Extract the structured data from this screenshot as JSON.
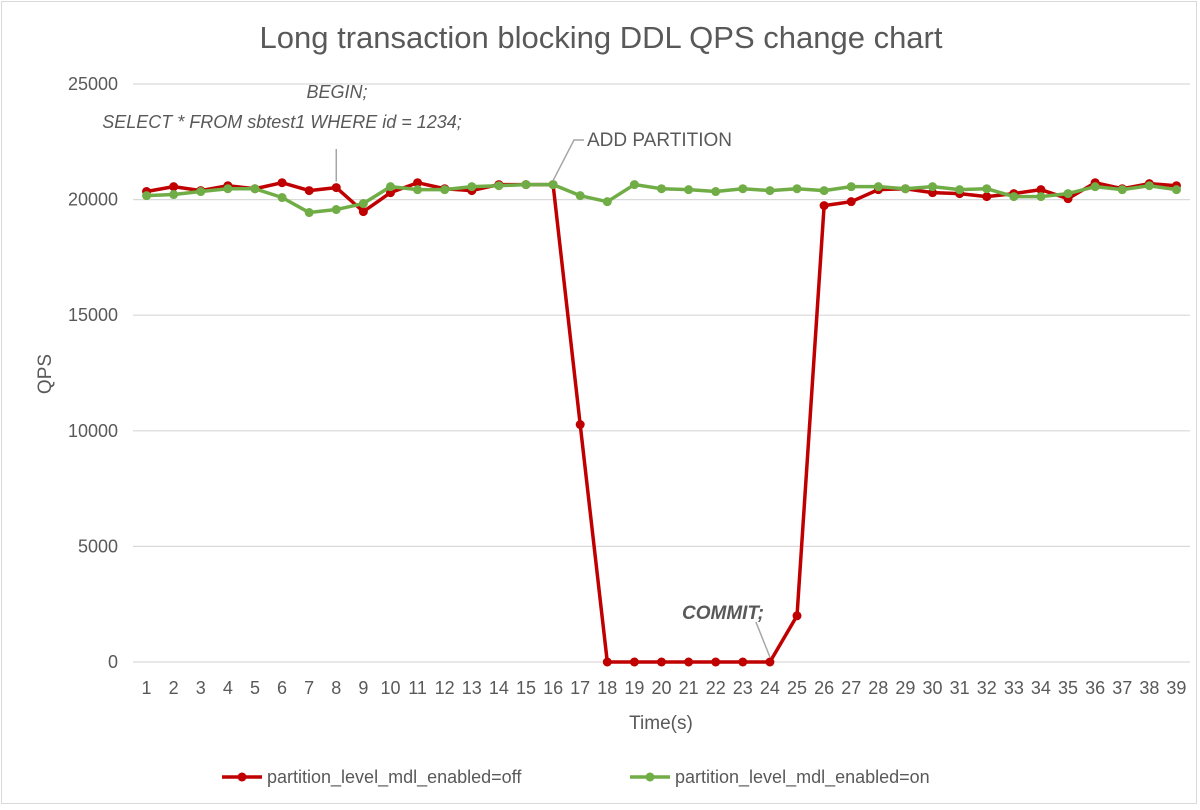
{
  "chart_data": {
    "type": "line",
    "title": "Long transaction blocking DDL QPS change chart",
    "xlabel": "Time(s)",
    "ylabel": "QPS",
    "ylim": [
      0,
      25000
    ],
    "yticks": [
      "0",
      "5000",
      "10000",
      "15000",
      "20000",
      "25000"
    ],
    "grid": "horizontal",
    "legend_position": "bottom",
    "categories": [
      "1",
      "2",
      "3",
      "4",
      "5",
      "6",
      "7",
      "8",
      "9",
      "10",
      "11",
      "12",
      "13",
      "14",
      "15",
      "16",
      "17",
      "18",
      "19",
      "20",
      "21",
      "22",
      "23",
      "24",
      "25",
      "26",
      "27",
      "28",
      "29",
      "30",
      "31",
      "32",
      "33",
      "34",
      "35",
      "36",
      "37",
      "38",
      "39"
    ],
    "series": [
      {
        "name": "partition_level_mdl_enabled=off",
        "color": "#c00000",
        "values": [
          20350,
          20560,
          20390,
          20600,
          20470,
          20730,
          20390,
          20520,
          19480,
          20300,
          20730,
          20470,
          20390,
          20650,
          20650,
          20650,
          10270,
          0,
          0,
          0,
          0,
          0,
          0,
          0,
          2000,
          19740,
          19910,
          20430,
          20470,
          20300,
          20260,
          20130,
          20260,
          20430,
          20040,
          20730,
          20470,
          20690,
          20600
        ]
      },
      {
        "name": "partition_level_mdl_enabled=on",
        "color": "#70ad47",
        "values": [
          20170,
          20220,
          20350,
          20470,
          20470,
          20090,
          19440,
          19570,
          19830,
          20560,
          20430,
          20430,
          20560,
          20600,
          20650,
          20650,
          20170,
          19910,
          20650,
          20470,
          20430,
          20350,
          20470,
          20390,
          20470,
          20390,
          20560,
          20560,
          20470,
          20560,
          20430,
          20470,
          20130,
          20130,
          20260,
          20560,
          20430,
          20600,
          20430
        ]
      }
    ],
    "annotations": [
      {
        "lines": [
          "BEGIN;",
          "SELECT * FROM sbtest1 WHERE id = 1234;"
        ],
        "point": "8",
        "series": 0,
        "style": "italic"
      },
      {
        "lines": [
          "ADD PARTITION"
        ],
        "point": "16",
        "series": 1,
        "style": "normal"
      },
      {
        "lines": [
          "COMMIT;"
        ],
        "point": "24",
        "series": 0,
        "style": "bold-italic"
      }
    ]
  }
}
